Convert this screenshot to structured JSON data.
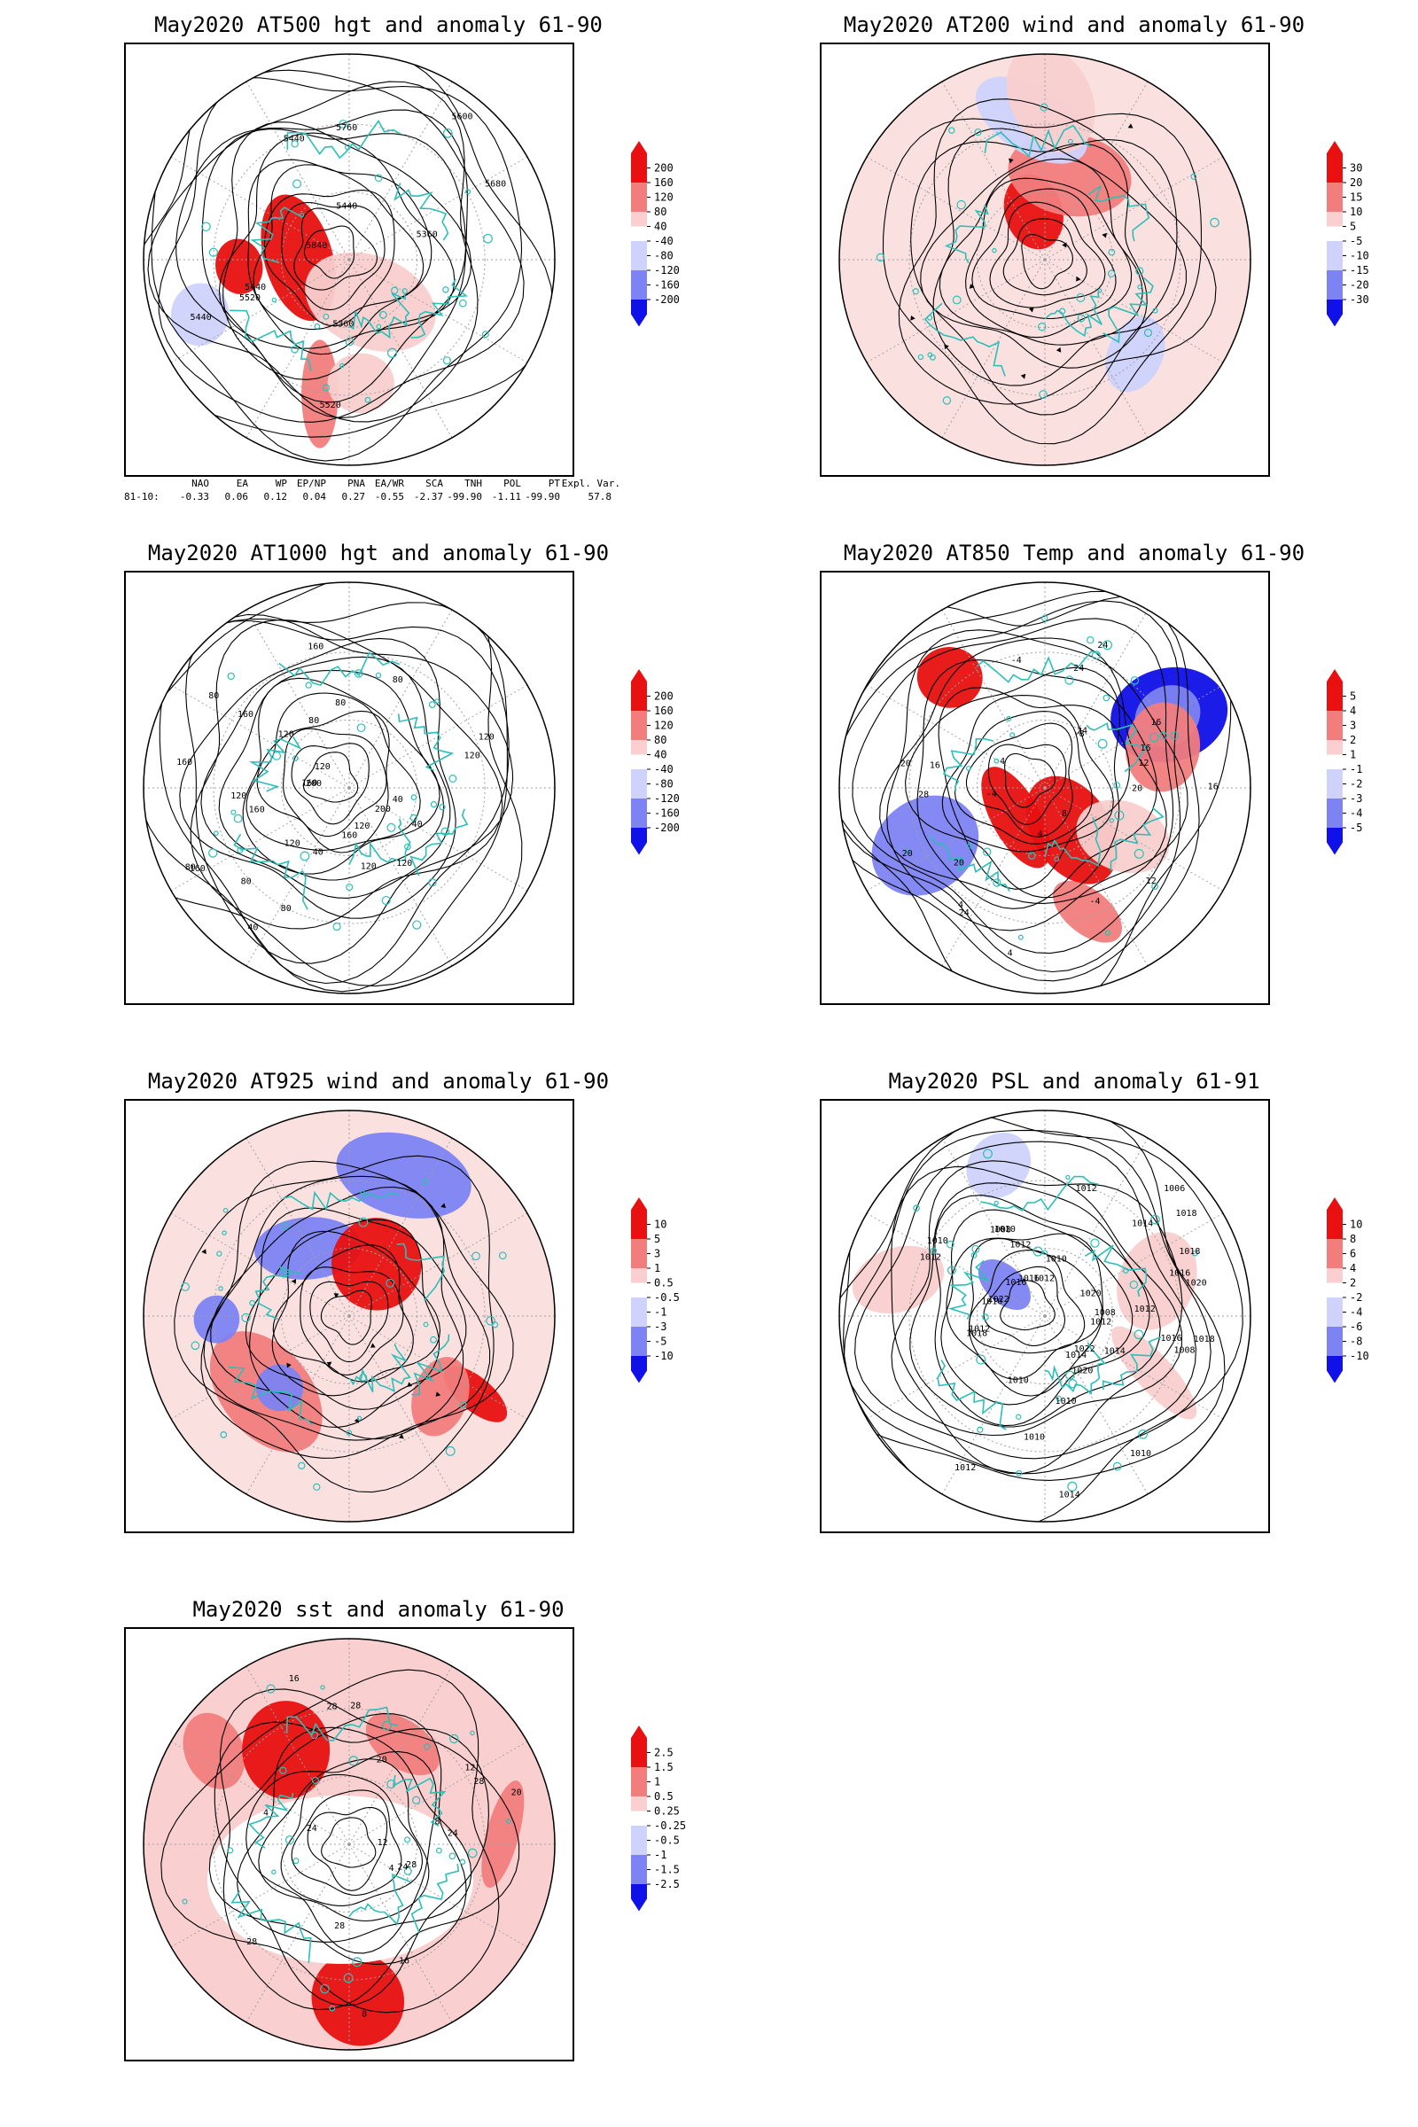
{
  "panels": [
    {
      "id": "at500",
      "title": "May2020 AT500 hgt and anomaly 61-90",
      "colorbar": [
        "200",
        "160",
        "120",
        "80",
        "40",
        "-40",
        "-80",
        "-120",
        "-160",
        "-200"
      ],
      "contour_labels": [
        "5440",
        "5360",
        "5520",
        "5440",
        "5440",
        "5360",
        "5440",
        "5520",
        "5600",
        "5680",
        "5760",
        "5840"
      ],
      "patches": [
        {
          "type": "pos",
          "v": "high"
        },
        {
          "type": "pos",
          "v": "high"
        },
        {
          "type": "pos",
          "v": "mid"
        },
        {
          "type": "pos",
          "v": "low"
        },
        {
          "type": "pos",
          "v": "low"
        },
        {
          "type": "neg",
          "v": "low"
        }
      ]
    },
    {
      "id": "at200",
      "title": "May2020 AT200 wind and anomaly 61-90",
      "colorbar": [
        "30",
        "20",
        "15",
        "10",
        "5",
        "-5",
        "-10",
        "-15",
        "-20",
        "-30"
      ],
      "contour_labels": [],
      "patches": [
        {
          "type": "pos",
          "v": "high"
        },
        {
          "type": "pos",
          "v": "mid"
        },
        {
          "type": "neg",
          "v": "low"
        },
        {
          "type": "neg",
          "v": "low"
        },
        {
          "type": "pos",
          "v": "low"
        }
      ]
    },
    {
      "id": "at1000",
      "title": "May2020 AT1000 hgt and anomaly 61-90",
      "colorbar": [
        "200",
        "160",
        "120",
        "80",
        "40",
        "-40",
        "-80",
        "-120",
        "-160",
        "-200"
      ],
      "contour_labels": [
        "120",
        "160",
        "160",
        "200",
        "40",
        "40",
        "160",
        "80",
        "120",
        "120",
        "120",
        "160",
        "120",
        "80",
        "80",
        "160",
        "200",
        "40",
        "120",
        "40",
        "80",
        "160",
        "160",
        "120",
        "80",
        "80",
        "120",
        "120",
        "80"
      ],
      "patches": []
    },
    {
      "id": "at850",
      "title": "May2020 AT850 Temp and anomaly 61-90",
      "colorbar": [
        "5",
        "4",
        "3",
        "2",
        "1",
        "-1",
        "-2",
        "-3",
        "-4",
        "-5"
      ],
      "contour_labels": [
        "16",
        "16",
        "12",
        "-4",
        "20",
        "24",
        "4",
        "-4",
        "16",
        "20",
        "4",
        "-8",
        "4",
        "-4",
        "24",
        "20",
        "8",
        "4",
        "12",
        "16",
        "28",
        "20",
        "24",
        "24"
      ],
      "patches": [
        {
          "type": "pos",
          "v": "high"
        },
        {
          "type": "pos",
          "v": "high"
        },
        {
          "type": "pos",
          "v": "high"
        },
        {
          "type": "neg",
          "v": "high"
        },
        {
          "type": "neg",
          "v": "mid"
        },
        {
          "type": "pos",
          "v": "mid"
        },
        {
          "type": "pos",
          "v": "mid"
        },
        {
          "type": "neg",
          "v": "mid"
        },
        {
          "type": "pos",
          "v": "low"
        }
      ]
    },
    {
      "id": "at925",
      "title": "May2020 AT925 wind and anomaly 61-90",
      "colorbar": [
        "10",
        "5",
        "3",
        "1",
        "0.5",
        "-0.5",
        "-1",
        "-3",
        "-5",
        "-10"
      ],
      "contour_labels": [],
      "patches": [
        {
          "type": "pos",
          "v": "mid"
        },
        {
          "type": "neg",
          "v": "mid"
        },
        {
          "type": "pos",
          "v": "high"
        },
        {
          "type": "neg",
          "v": "mid"
        },
        {
          "type": "neg",
          "v": "mid"
        },
        {
          "type": "pos",
          "v": "mid"
        },
        {
          "type": "neg",
          "v": "mid"
        },
        {
          "type": "pos",
          "v": "high"
        }
      ]
    },
    {
      "id": "psl",
      "title": "May2020 PSL and anomaly 61-91",
      "colorbar": [
        "10",
        "8",
        "6",
        "4",
        "2",
        "-2",
        "-4",
        "-6",
        "-8",
        "-10"
      ],
      "contour_labels": [
        "1010",
        "1010",
        "1012",
        "1014",
        "1016",
        "1018",
        "1020",
        "1010",
        "1012",
        "1022",
        "1020",
        "1018",
        "1016",
        "1014",
        "1012",
        "1010",
        "1008",
        "1016",
        "1018",
        "1020",
        "1014",
        "1012",
        "1008",
        "1006",
        "1022",
        "1012",
        "1010",
        "1008",
        "1012",
        "1010",
        "1018",
        "1016",
        "1010",
        "1014",
        "1012",
        "1010",
        "1012"
      ],
      "patches": [
        {
          "type": "neg",
          "v": "mid"
        },
        {
          "type": "pos",
          "v": "low"
        },
        {
          "type": "pos",
          "v": "low"
        },
        {
          "type": "neg",
          "v": "low"
        },
        {
          "type": "pos",
          "v": "low"
        }
      ]
    },
    {
      "id": "sst",
      "title": "May2020 sst and anomaly 61-90",
      "colorbar": [
        "2.5",
        "1.5",
        "1",
        "0.5",
        "0.25",
        "-0.25",
        "-0.5",
        "-1",
        "-1.5",
        "-2.5"
      ],
      "contour_labels": [
        "28",
        "28",
        "24",
        "20",
        "16",
        "12",
        "8",
        "4",
        "28",
        "24",
        "20",
        "16",
        "12",
        "8",
        "4",
        "28",
        "28",
        "24",
        "28"
      ],
      "patches": [
        {
          "type": "pos",
          "v": "mid"
        },
        {
          "type": "pos",
          "v": "high"
        },
        {
          "type": "pos",
          "v": "mid"
        },
        {
          "type": "pos",
          "v": "mid"
        },
        {
          "type": "pos",
          "v": "high"
        }
      ]
    }
  ],
  "indices": {
    "headers": [
      "NAO",
      "EA",
      "WP",
      "EP/NP",
      "PNA",
      "EA/WR",
      "SCA",
      "TNH",
      "POL",
      "PT",
      "Expl. Var."
    ],
    "row_label": "81-10:",
    "values": [
      "-0.33",
      "0.06",
      "0.12",
      "0.04",
      "0.27",
      "-0.55",
      "-2.37",
      "-99.90",
      "-1.11",
      "-99.90",
      "57.8"
    ]
  },
  "colors": {
    "pos_high": "#e81010",
    "pos_mid": "#f27d7d",
    "pos_low": "#f9cfcf",
    "neg_low": "#cfd3fb",
    "neg_mid": "#7d83f2",
    "neg_high": "#1010e8",
    "coast": "#2bbfb8",
    "contour": "#000000",
    "grid": "#a0a0a0"
  }
}
